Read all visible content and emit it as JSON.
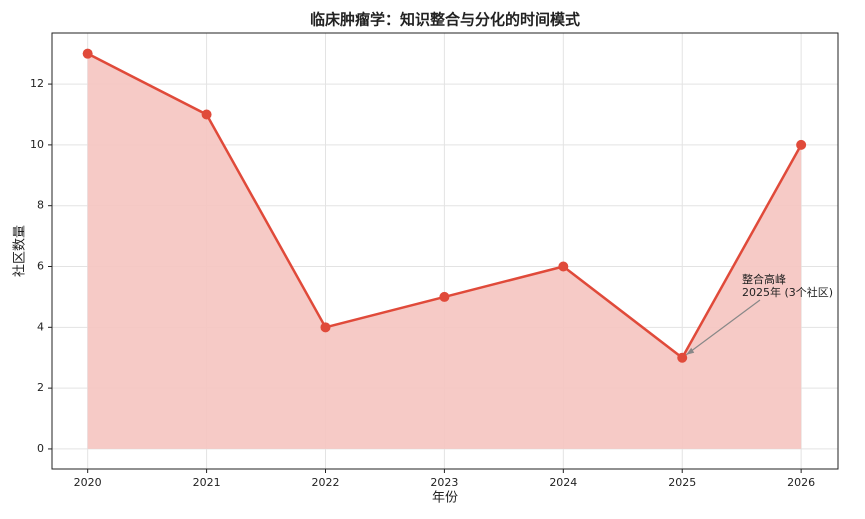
{
  "chart_data": {
    "type": "area-line",
    "title": "临床肿瘤学：知识整合与分化的时间模式",
    "x_label": "年份",
    "y_label": "社区数量",
    "x": [
      2020,
      2021,
      2022,
      2023,
      2024,
      2025,
      2026
    ],
    "values": [
      13,
      11,
      4,
      5,
      6,
      3,
      10
    ],
    "color": "#e04a3a",
    "fill_color": "#f5c4c0",
    "xlim": [
      2019.7,
      2026.31
    ],
    "xticks": [
      2020,
      2021,
      2022,
      2023,
      2024,
      2025,
      2026
    ],
    "ylim": [
      -0.66,
      13.68
    ],
    "yticks": [
      0,
      2,
      4,
      6,
      8,
      10,
      12
    ],
    "grid": true,
    "annotation": {
      "text": [
        "整合高峰",
        "2025年 (3个社区)"
      ],
      "x": 2025,
      "y": 3
    }
  }
}
